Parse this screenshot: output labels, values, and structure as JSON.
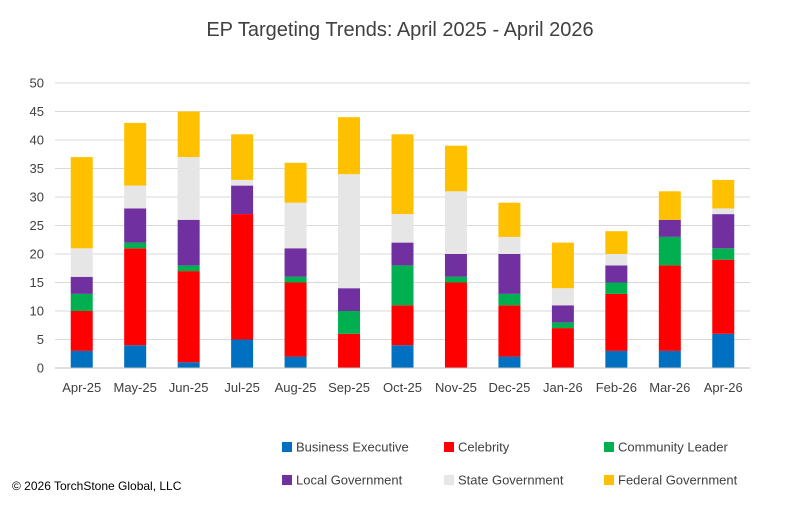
{
  "copyright": "© 2026 TorchStone Global, LLC",
  "chart_data": {
    "type": "bar",
    "stacked": true,
    "title": "EP Targeting Trends: April 2025  - April 2026",
    "xlabel": "",
    "ylabel": "",
    "ylim": [
      0,
      50
    ],
    "yticks": [
      0,
      5,
      10,
      15,
      20,
      25,
      30,
      35,
      40,
      45,
      50
    ],
    "grid": true,
    "legend_position": "bottom",
    "categories": [
      "Apr-25",
      "May-25",
      "Jun-25",
      "Jul-25",
      "Aug-25",
      "Sep-25",
      "Oct-25",
      "Nov-25",
      "Dec-25",
      "Jan-26",
      "Feb-26",
      "Mar-26",
      "Apr-26"
    ],
    "series": [
      {
        "name": "Business Executive",
        "color": "#0070C0",
        "values": [
          3,
          4,
          1,
          5,
          2,
          0,
          4,
          0,
          2,
          0,
          3,
          3,
          6
        ]
      },
      {
        "name": "Celebrity",
        "color": "#FF0000",
        "values": [
          7,
          17,
          16,
          22,
          13,
          6,
          7,
          15,
          9,
          7,
          10,
          15,
          13
        ]
      },
      {
        "name": "Community Leader",
        "color": "#00B050",
        "values": [
          3,
          1,
          1,
          0,
          1,
          4,
          7,
          1,
          2,
          1,
          2,
          5,
          2
        ]
      },
      {
        "name": "Local Government",
        "color": "#7030A0",
        "values": [
          3,
          6,
          8,
          5,
          5,
          4,
          4,
          4,
          7,
          3,
          3,
          3,
          6
        ]
      },
      {
        "name": "State Government",
        "color": "#E7E6E6",
        "values": [
          5,
          4,
          11,
          1,
          8,
          20,
          5,
          11,
          3,
          3,
          2,
          0,
          1
        ]
      },
      {
        "name": "Federal Government",
        "color": "#FFC000",
        "values": [
          16,
          11,
          8,
          8,
          7,
          10,
          14,
          8,
          6,
          8,
          4,
          5,
          5
        ]
      }
    ]
  }
}
